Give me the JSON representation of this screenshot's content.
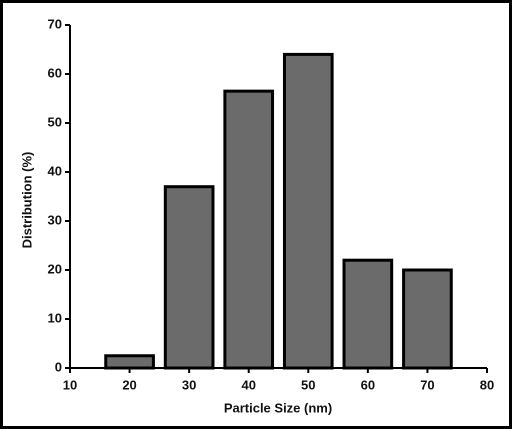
{
  "chart_data": {
    "type": "bar",
    "x": [
      20,
      30,
      40,
      50,
      60,
      70
    ],
    "values": [
      2.5,
      37,
      56.5,
      64,
      22,
      20
    ],
    "color": "#6b6b6b",
    "xlabel": "Particle Size (nm)",
    "ylabel": "Distribution (%)",
    "xlim": [
      10,
      80
    ],
    "xticks": [
      10,
      20,
      30,
      40,
      50,
      60,
      70,
      80
    ],
    "ylim": [
      0,
      70
    ],
    "yticks": [
      0,
      10,
      20,
      30,
      40,
      50,
      60,
      70
    ],
    "grid": false
  }
}
